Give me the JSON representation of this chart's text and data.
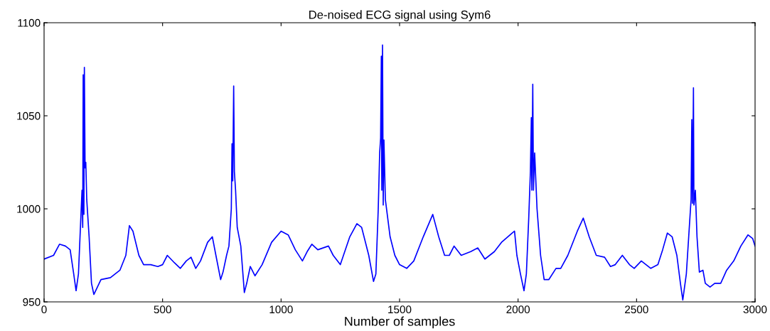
{
  "chart_data": {
    "type": "line",
    "title": "De-noised ECG signal using Sym6",
    "xlabel": "Number of samples",
    "xlim": [
      0,
      3000
    ],
    "xticks": [
      0,
      500,
      1000,
      1500,
      2000,
      2500,
      3000
    ],
    "ylim": [
      950,
      1100
    ],
    "yticks": [
      950,
      1000,
      1050,
      1100
    ],
    "grid": false,
    "marker": "none",
    "line_style": "solid",
    "series": [
      {
        "color": "#0000ff",
        "x": [
          0,
          40,
          65,
          90,
          110,
          125,
          135,
          145,
          155,
          160,
          163,
          165,
          168,
          170,
          173,
          176,
          180,
          190,
          200,
          210,
          225,
          240,
          280,
          320,
          345,
          360,
          375,
          400,
          420,
          450,
          480,
          500,
          520,
          550,
          575,
          600,
          620,
          640,
          660,
          690,
          710,
          725,
          745,
          755,
          770,
          780,
          790,
          793,
          796,
          800,
          803,
          808,
          815,
          830,
          845,
          855,
          870,
          890,
          920,
          960,
          1000,
          1030,
          1060,
          1090,
          1110,
          1130,
          1155,
          1200,
          1220,
          1250,
          1290,
          1320,
          1340,
          1370,
          1390,
          1400,
          1410,
          1416,
          1420,
          1423,
          1425,
          1428,
          1431,
          1434,
          1440,
          1460,
          1480,
          1500,
          1530,
          1560,
          1600,
          1640,
          1665,
          1690,
          1710,
          1730,
          1760,
          1800,
          1830,
          1860,
          1900,
          1930,
          1975,
          1985,
          1995,
          2010,
          2025,
          2035,
          2045,
          2052,
          2056,
          2058,
          2062,
          2065,
          2070,
          2080,
          2095,
          2110,
          2130,
          2160,
          2180,
          2210,
          2250,
          2275,
          2300,
          2330,
          2365,
          2390,
          2410,
          2440,
          2470,
          2490,
          2520,
          2560,
          2590,
          2610,
          2630,
          2650,
          2670,
          2685,
          2695,
          2710,
          2720,
          2730,
          2733,
          2736,
          2740,
          2742,
          2748,
          2755,
          2765,
          2780,
          2790,
          2810,
          2830,
          2855,
          2880,
          2910,
          2940,
          2970,
          2990,
          3000
        ],
        "values": [
          973,
          975,
          981,
          980,
          978,
          965,
          956,
          965,
          995,
          1010,
          990,
          1072,
          997,
          1076,
          1022,
          1025,
          1005,
          985,
          960,
          954,
          958,
          962,
          963,
          967,
          975,
          991,
          988,
          975,
          970,
          970,
          969,
          970,
          975,
          971,
          968,
          972,
          974,
          968,
          972,
          982,
          985,
          975,
          962,
          966,
          975,
          980,
          1000,
          1035,
          1015,
          1066,
          1020,
          1010,
          990,
          980,
          955,
          960,
          969,
          964,
          970,
          982,
          988,
          986,
          978,
          972,
          977,
          981,
          978,
          980,
          975,
          970,
          985,
          992,
          990,
          975,
          961,
          965,
          1000,
          1030,
          1038,
          1082,
          1010,
          1088,
          1002,
          1037,
          1005,
          985,
          975,
          970,
          968,
          972,
          985,
          997,
          985,
          975,
          975,
          980,
          975,
          977,
          979,
          973,
          977,
          982,
          987,
          988,
          975,
          965,
          956,
          965,
          995,
          1020,
          1049,
          1010,
          1067,
          1010,
          1030,
          1000,
          975,
          962,
          962,
          968,
          968,
          975,
          988,
          995,
          985,
          975,
          974,
          969,
          970,
          975,
          970,
          968,
          972,
          968,
          970,
          978,
          987,
          985,
          975,
          960,
          951,
          965,
          985,
          1005,
          1048,
          1003,
          1065,
          1002,
          1010,
          985,
          966,
          967,
          960,
          958,
          960,
          960,
          967,
          972,
          980,
          986,
          984,
          980
        ]
      }
    ]
  }
}
